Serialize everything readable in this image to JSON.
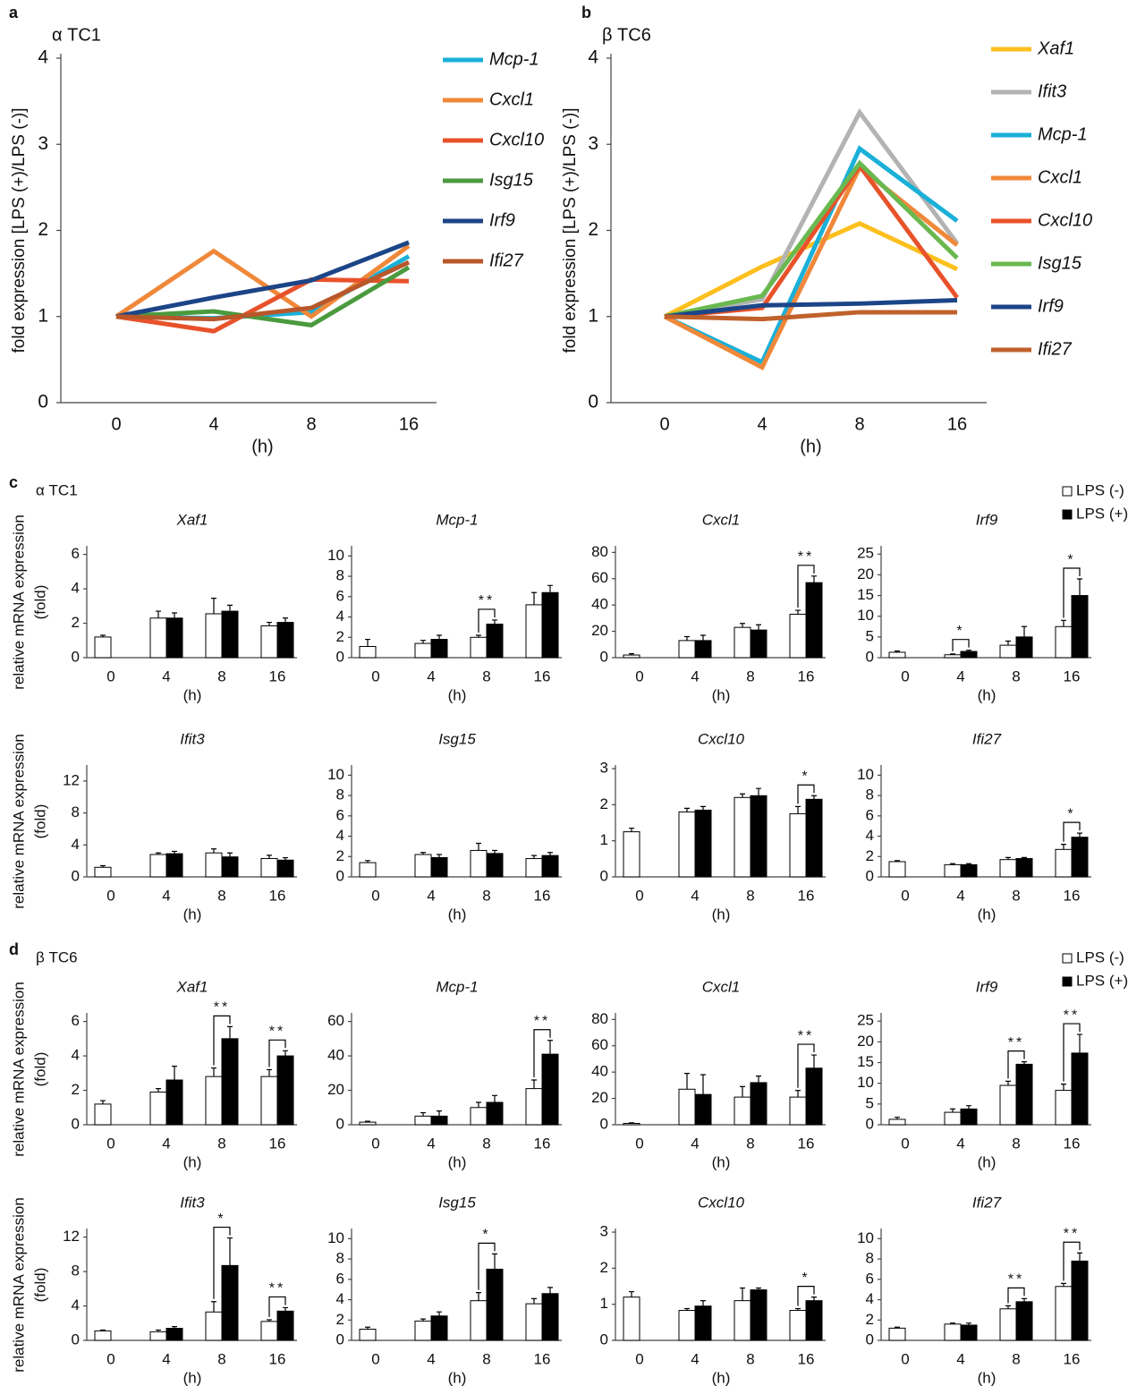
{
  "chart_data": [
    {
      "type": "line",
      "panel": "a",
      "title": "α TC1",
      "ylabel": "fold expression [LPS (+)/LPS (-)]",
      "xlabel": "(h)",
      "categories": [
        "0",
        "4",
        "8",
        "16"
      ],
      "ylim": [
        0,
        4
      ],
      "yticks": [
        0,
        1,
        2,
        3,
        4
      ],
      "series": [
        {
          "name": "Mcp-1",
          "color": "#1ab0d8",
          "values": [
            1,
            0.98,
            1.05,
            1.7
          ]
        },
        {
          "name": "Cxcl1",
          "color": "#f0883a",
          "values": [
            1,
            1.76,
            1.0,
            1.82
          ]
        },
        {
          "name": "Cxcl10",
          "color": "#e8522a",
          "values": [
            1,
            0.83,
            1.43,
            1.41
          ]
        },
        {
          "name": "Isg15",
          "color": "#4a9a3e",
          "values": [
            1,
            1.06,
            0.9,
            1.57
          ]
        },
        {
          "name": "Irf9",
          "color": "#1c4587",
          "values": [
            1,
            1.22,
            1.42,
            1.86
          ]
        },
        {
          "name": "Ifi27",
          "color": "#b8572a",
          "values": [
            1,
            0.97,
            1.1,
            1.63
          ]
        }
      ]
    },
    {
      "type": "line",
      "panel": "b",
      "title": "β TC6",
      "ylabel": "fold expression [LPS (+)/LPS (-)]",
      "xlabel": "(h)",
      "categories": [
        "0",
        "4",
        "8",
        "16"
      ],
      "ylim": [
        0,
        4
      ],
      "yticks": [
        0,
        1,
        2,
        3,
        4
      ],
      "series": [
        {
          "name": "Xaf1",
          "color": "#fcbf1e",
          "values": [
            1,
            1.58,
            2.08,
            1.55
          ]
        },
        {
          "name": "Ifit3",
          "color": "#b3b3b3",
          "values": [
            1,
            1.2,
            3.37,
            1.85
          ]
        },
        {
          "name": "Mcp-1",
          "color": "#1ab0d8",
          "values": [
            1,
            0.47,
            2.95,
            2.11
          ]
        },
        {
          "name": "Cxcl1",
          "color": "#f0883a",
          "values": [
            1,
            0.41,
            2.73,
            1.83
          ]
        },
        {
          "name": "Cxcl10",
          "color": "#e8522a",
          "values": [
            1,
            1.1,
            2.75,
            1.22
          ]
        },
        {
          "name": "Isg15",
          "color": "#6ab850",
          "values": [
            1,
            1.24,
            2.78,
            1.68
          ]
        },
        {
          "name": "Irf9",
          "color": "#1c4587",
          "values": [
            1,
            1.13,
            1.15,
            1.19
          ]
        },
        {
          "name": "Ifi27",
          "color": "#c0612b",
          "values": [
            1,
            0.97,
            1.05,
            1.05
          ]
        }
      ]
    },
    {
      "type": "bar",
      "panel": "c",
      "subtitle": "α TC1",
      "ylabel": [
        "relative mRNA expression",
        "(fold)"
      ],
      "title": "Xaf1",
      "xlabel": "(h)",
      "categories": [
        "0",
        "4",
        "8",
        "16"
      ],
      "ylim": [
        0,
        6.5
      ],
      "yticks": [
        0,
        2,
        4,
        6
      ],
      "series": [
        {
          "color": "#ffffff",
          "values": [
            1.2,
            2.3,
            2.55,
            1.85
          ],
          "errors": [
            0.1,
            0.4,
            0.9,
            0.2
          ]
        },
        {
          "color": "#000000",
          "values": [
            null,
            2.3,
            2.7,
            2.05
          ],
          "errors": [
            null,
            0.3,
            0.35,
            0.25
          ]
        }
      ],
      "significance": []
    },
    {
      "type": "bar",
      "title": "Mcp-1",
      "xlabel": "(h)",
      "categories": [
        "0",
        "4",
        "8",
        "16"
      ],
      "ylim": [
        0,
        11
      ],
      "yticks": [
        0,
        2,
        4,
        6,
        8,
        10
      ],
      "series": [
        {
          "color": "#ffffff",
          "values": [
            1.1,
            1.4,
            2.0,
            5.2
          ],
          "errors": [
            0.7,
            0.3,
            0.2,
            1.2
          ]
        },
        {
          "color": "#000000",
          "values": [
            null,
            1.8,
            3.3,
            6.4
          ],
          "errors": [
            null,
            0.4,
            0.4,
            0.7
          ]
        }
      ],
      "significance": [
        {
          "x": "8",
          "label": "**"
        }
      ]
    },
    {
      "type": "bar",
      "title": "Cxcl1",
      "xlabel": "(h)",
      "categories": [
        "0",
        "4",
        "8",
        "16"
      ],
      "ylim": [
        0,
        85
      ],
      "yticks": [
        0,
        20,
        40,
        60,
        80
      ],
      "series": [
        {
          "color": "#ffffff",
          "values": [
            2,
            13,
            23,
            33
          ],
          "errors": [
            1,
            3,
            3,
            3
          ]
        },
        {
          "color": "#000000",
          "values": [
            null,
            13,
            21,
            57
          ],
          "errors": [
            null,
            4,
            4,
            5
          ]
        }
      ],
      "significance": [
        {
          "x": "16",
          "label": "**"
        }
      ]
    },
    {
      "type": "bar",
      "title": "Irf9",
      "xlabel": "(h)",
      "categories": [
        "0",
        "4",
        "8",
        "16"
      ],
      "ylim": [
        0,
        27
      ],
      "yticks": [
        0,
        5,
        10,
        15,
        20,
        25
      ],
      "legend": true,
      "series": [
        {
          "name": "LPS (-)",
          "color": "#ffffff",
          "values": [
            1.3,
            0.7,
            3,
            7.5
          ],
          "errors": [
            0.3,
            0.2,
            1,
            1.5
          ]
        },
        {
          "name": "LPS (+)",
          "color": "#000000",
          "values": [
            null,
            1.5,
            5,
            15
          ],
          "errors": [
            null,
            0.3,
            2.5,
            4
          ]
        }
      ],
      "significance": [
        {
          "x": "4",
          "label": "*"
        },
        {
          "x": "16",
          "label": "*"
        }
      ]
    },
    {
      "type": "bar",
      "ylabel": [
        "relative mRNA expression",
        "(fold)"
      ],
      "title": "Ifit3",
      "xlabel": "(h)",
      "categories": [
        "0",
        "4",
        "8",
        "16"
      ],
      "ylim": [
        0,
        14
      ],
      "yticks": [
        0,
        4,
        8,
        12
      ],
      "series": [
        {
          "color": "#ffffff",
          "values": [
            1.2,
            2.8,
            3.0,
            2.3
          ],
          "errors": [
            0.2,
            0.2,
            0.5,
            0.4
          ]
        },
        {
          "color": "#000000",
          "values": [
            null,
            2.9,
            2.5,
            2.1
          ],
          "errors": [
            null,
            0.3,
            0.5,
            0.3
          ]
        }
      ],
      "significance": []
    },
    {
      "type": "bar",
      "title": "Isg15",
      "xlabel": "(h)",
      "categories": [
        "0",
        "4",
        "8",
        "16"
      ],
      "ylim": [
        0,
        11
      ],
      "yticks": [
        0,
        2,
        4,
        6,
        8,
        10
      ],
      "series": [
        {
          "color": "#ffffff",
          "values": [
            1.4,
            2.2,
            2.6,
            1.8
          ],
          "errors": [
            0.2,
            0.2,
            0.7,
            0.3
          ]
        },
        {
          "color": "#000000",
          "values": [
            null,
            1.9,
            2.3,
            2.1
          ],
          "errors": [
            null,
            0.3,
            0.3,
            0.3
          ]
        }
      ],
      "significance": []
    },
    {
      "type": "bar",
      "title": "Cxcl10",
      "xlabel": "(h)",
      "categories": [
        "0",
        "4",
        "8",
        "16"
      ],
      "ylim": [
        0,
        3.1
      ],
      "yticks": [
        0,
        1,
        2,
        3
      ],
      "series": [
        {
          "color": "#ffffff",
          "values": [
            1.25,
            1.8,
            2.2,
            1.75
          ],
          "errors": [
            0.1,
            0.1,
            0.1,
            0.2
          ]
        },
        {
          "color": "#000000",
          "values": [
            null,
            1.85,
            2.25,
            2.15
          ],
          "errors": [
            null,
            0.1,
            0.2,
            0.1
          ]
        }
      ],
      "significance": [
        {
          "x": "16",
          "label": "*"
        }
      ]
    },
    {
      "type": "bar",
      "title": "Ifi27",
      "xlabel": "(h)",
      "categories": [
        "0",
        "4",
        "8",
        "16"
      ],
      "ylim": [
        0,
        11
      ],
      "yticks": [
        0,
        2,
        4,
        6,
        8,
        10
      ],
      "series": [
        {
          "color": "#ffffff",
          "values": [
            1.5,
            1.2,
            1.7,
            2.7
          ],
          "errors": [
            0.1,
            0.1,
            0.2,
            0.5
          ]
        },
        {
          "color": "#000000",
          "values": [
            null,
            1.2,
            1.8,
            3.9
          ],
          "errors": [
            null,
            0.1,
            0.1,
            0.4
          ]
        }
      ],
      "significance": [
        {
          "x": "16",
          "label": "*"
        }
      ]
    },
    {
      "type": "bar",
      "panel": "d",
      "subtitle": "β TC6",
      "ylabel": [
        "relative mRNA expression",
        "(fold)"
      ],
      "title": "Xaf1",
      "xlabel": "(h)",
      "categories": [
        "0",
        "4",
        "8",
        "16"
      ],
      "ylim": [
        0,
        6.5
      ],
      "yticks": [
        0,
        2,
        4,
        6
      ],
      "series": [
        {
          "color": "#ffffff",
          "values": [
            1.2,
            1.9,
            2.8,
            2.8
          ],
          "errors": [
            0.2,
            0.2,
            0.5,
            0.4
          ]
        },
        {
          "color": "#000000",
          "values": [
            null,
            2.6,
            5.0,
            4.0
          ],
          "errors": [
            null,
            0.8,
            0.7,
            0.3
          ]
        }
      ],
      "significance": [
        {
          "x": "8",
          "label": "**"
        },
        {
          "x": "16",
          "label": "**"
        }
      ]
    },
    {
      "type": "bar",
      "title": "Mcp-1",
      "xlabel": "(h)",
      "categories": [
        "0",
        "4",
        "8",
        "16"
      ],
      "ylim": [
        0,
        65
      ],
      "yticks": [
        0,
        20,
        40,
        60
      ],
      "series": [
        {
          "color": "#ffffff",
          "values": [
            1.5,
            5,
            10,
            21
          ],
          "errors": [
            0.5,
            2,
            3,
            5
          ]
        },
        {
          "color": "#000000",
          "values": [
            null,
            5,
            13,
            41
          ],
          "errors": [
            null,
            3,
            4,
            8
          ]
        }
      ],
      "significance": [
        {
          "x": "16",
          "label": "**"
        }
      ]
    },
    {
      "type": "bar",
      "title": "Cxcl1",
      "xlabel": "(h)",
      "categories": [
        "0",
        "4",
        "8",
        "16"
      ],
      "ylim": [
        0,
        85
      ],
      "yticks": [
        0,
        20,
        40,
        60,
        80
      ],
      "series": [
        {
          "color": "#ffffff",
          "values": [
            1,
            27,
            21,
            21
          ],
          "errors": [
            0.5,
            12,
            8,
            5
          ]
        },
        {
          "color": "#000000",
          "values": [
            null,
            23,
            32,
            43
          ],
          "errors": [
            null,
            15,
            5,
            10
          ]
        }
      ],
      "significance": [
        {
          "x": "16",
          "label": "**"
        }
      ]
    },
    {
      "type": "bar",
      "title": "Irf9",
      "xlabel": "(h)",
      "categories": [
        "0",
        "4",
        "8",
        "16"
      ],
      "ylim": [
        0,
        27
      ],
      "yticks": [
        0,
        5,
        10,
        15,
        20,
        25
      ],
      "legend": true,
      "series": [
        {
          "name": "LPS (-)",
          "color": "#ffffff",
          "values": [
            1.3,
            3,
            9.5,
            8.3
          ],
          "errors": [
            0.5,
            0.8,
            1,
            1.5
          ]
        },
        {
          "name": "LPS (+)",
          "color": "#000000",
          "values": [
            null,
            3.8,
            14.6,
            17.3
          ],
          "errors": [
            null,
            0.8,
            0.6,
            4.5
          ]
        }
      ],
      "significance": [
        {
          "x": "8",
          "label": "**"
        },
        {
          "x": "16",
          "label": "**"
        }
      ]
    },
    {
      "type": "bar",
      "ylabel": [
        "relative mRNA expression",
        "(fold)"
      ],
      "title": "Ifit3",
      "xlabel": "(h)",
      "categories": [
        "0",
        "4",
        "8",
        "16"
      ],
      "ylim": [
        0,
        13
      ],
      "yticks": [
        0,
        4,
        8,
        12
      ],
      "series": [
        {
          "color": "#ffffff",
          "values": [
            1.1,
            1.0,
            3.3,
            2.2
          ],
          "errors": [
            0.1,
            0.2,
            1.2,
            0.2
          ]
        },
        {
          "color": "#000000",
          "values": [
            null,
            1.4,
            8.7,
            3.4
          ],
          "errors": [
            null,
            0.2,
            3.2,
            0.4
          ]
        }
      ],
      "significance": [
        {
          "x": "8",
          "label": "*"
        },
        {
          "x": "16",
          "label": "**"
        }
      ]
    },
    {
      "type": "bar",
      "title": "Isg15",
      "xlabel": "(h)",
      "categories": [
        "0",
        "4",
        "8",
        "16"
      ],
      "ylim": [
        0,
        11
      ],
      "yticks": [
        0,
        2,
        4,
        6,
        8,
        10
      ],
      "series": [
        {
          "color": "#ffffff",
          "values": [
            1.1,
            1.9,
            3.9,
            3.6
          ],
          "errors": [
            0.2,
            0.2,
            0.8,
            0.5
          ]
        },
        {
          "color": "#000000",
          "values": [
            null,
            2.4,
            7.0,
            4.6
          ],
          "errors": [
            null,
            0.4,
            1.5,
            0.6
          ]
        }
      ],
      "significance": [
        {
          "x": "8",
          "label": "*"
        }
      ]
    },
    {
      "type": "bar",
      "title": "Cxcl10",
      "xlabel": "(h)",
      "categories": [
        "0",
        "4",
        "8",
        "16"
      ],
      "ylim": [
        0,
        3.1
      ],
      "yticks": [
        0,
        1,
        2,
        3
      ],
      "series": [
        {
          "color": "#ffffff",
          "values": [
            1.2,
            0.83,
            1.1,
            0.83
          ],
          "errors": [
            0.15,
            0.05,
            0.35,
            0.05
          ]
        },
        {
          "color": "#000000",
          "values": [
            null,
            0.95,
            1.4,
            1.1
          ],
          "errors": [
            null,
            0.15,
            0.05,
            0.1
          ]
        }
      ],
      "significance": [
        {
          "x": "16",
          "label": "*"
        }
      ]
    },
    {
      "type": "bar",
      "title": "Ifi27",
      "xlabel": "(h)",
      "categories": [
        "0",
        "4",
        "8",
        "16"
      ],
      "ylim": [
        0,
        11
      ],
      "yticks": [
        0,
        2,
        4,
        6,
        8,
        10
      ],
      "series": [
        {
          "color": "#ffffff",
          "values": [
            1.2,
            1.6,
            3.1,
            5.3
          ],
          "errors": [
            0.1,
            0.1,
            0.3,
            0.3
          ]
        },
        {
          "color": "#000000",
          "values": [
            null,
            1.5,
            3.8,
            7.8
          ],
          "errors": [
            null,
            0.2,
            0.3,
            0.8
          ]
        }
      ],
      "significance": [
        {
          "x": "8",
          "label": "**"
        },
        {
          "x": "16",
          "label": "**"
        }
      ]
    }
  ]
}
